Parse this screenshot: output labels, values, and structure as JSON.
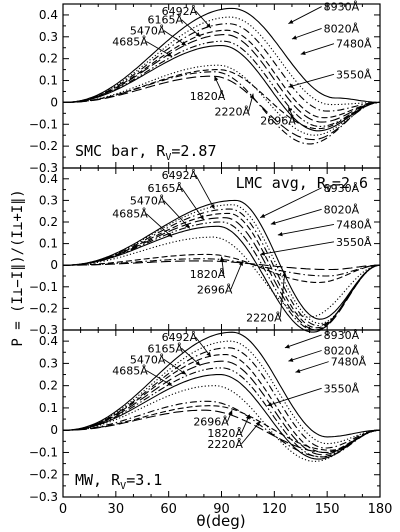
{
  "chart_data": {
    "type": "line",
    "xlabel": "θ(deg)",
    "ylabel": "P = (I⊥−I∥)/(I⊥+I∥)",
    "xlim": [
      0,
      180
    ],
    "ylim": [
      -0.3,
      0.45
    ],
    "xticks": [
      "0",
      "30",
      "60",
      "90",
      "120",
      "150",
      "180"
    ],
    "yticks": [
      "−0.3",
      "−0.2",
      "−0.1",
      "0",
      "0.1",
      "0.2",
      "0.3",
      "0.4"
    ],
    "grid": false,
    "panels": [
      {
        "title": "SMC bar, RV=2.87",
        "title_main": "SMC bar, R",
        "title_sub": "V",
        "title_tail": "=2.87",
        "series": [
          {
            "name": "8930Å",
            "style": "solid",
            "peak_x": 96,
            "peak_y": 0.43,
            "min_x": 155,
            "min_y": 0.02
          },
          {
            "name": "8020Å",
            "style": "dotted",
            "peak_x": 95,
            "peak_y": 0.39,
            "min_x": 152,
            "min_y": -0.01
          },
          {
            "name": "7480Å",
            "style": "dashdot",
            "peak_x": 94,
            "peak_y": 0.36,
            "min_x": 150,
            "min_y": -0.04
          },
          {
            "name": "6492Å",
            "style": "dashed",
            "peak_x": 93,
            "peak_y": 0.33,
            "min_x": 148,
            "min_y": -0.07
          },
          {
            "name": "6165Å",
            "style": "longdash",
            "peak_x": 92,
            "peak_y": 0.31,
            "min_x": 147,
            "min_y": -0.09
          },
          {
            "name": "5470Å",
            "style": "dashdotdot",
            "peak_x": 91,
            "peak_y": 0.28,
            "min_x": 146,
            "min_y": -0.11
          },
          {
            "name": "4685Å",
            "style": "solid",
            "peak_x": 90,
            "peak_y": 0.26,
            "min_x": 145,
            "min_y": -0.13
          },
          {
            "name": "3550Å",
            "style": "dotted",
            "peak_x": 88,
            "peak_y": 0.17,
            "min_x": 143,
            "min_y": -0.15
          },
          {
            "name": "2696Å",
            "style": "dashdot",
            "peak_x": 86,
            "peak_y": 0.14,
            "min_x": 140,
            "min_y": -0.19
          },
          {
            "name": "2220Å",
            "style": "longdash",
            "peak_x": 85,
            "peak_y": 0.12,
            "min_x": 142,
            "min_y": -0.17
          },
          {
            "name": "1820Å",
            "style": "dashed",
            "peak_x": 88,
            "peak_y": 0.15,
            "min_x": 145,
            "min_y": -0.12
          }
        ],
        "labels": [
          {
            "text": "6492Å",
            "lx": 56,
            "ly": 0.4,
            "tx": 84,
            "ty": 0.34
          },
          {
            "text": "6165Å",
            "lx": 48,
            "ly": 0.36,
            "tx": 78,
            "ty": 0.3
          },
          {
            "text": "5470Å",
            "lx": 38,
            "ly": 0.31,
            "tx": 70,
            "ty": 0.26
          },
          {
            "text": "4685Å",
            "lx": 28,
            "ly": 0.26,
            "tx": 62,
            "ty": 0.21
          },
          {
            "text": "8930Å",
            "lx": 148,
            "ly": 0.42,
            "tx": 128,
            "ty": 0.36
          },
          {
            "text": "8020Å",
            "lx": 148,
            "ly": 0.32,
            "tx": 130,
            "ty": 0.29
          },
          {
            "text": "7480Å",
            "lx": 155,
            "ly": 0.25,
            "tx": 135,
            "ty": 0.22
          },
          {
            "text": "3550Å",
            "lx": 155,
            "ly": 0.11,
            "tx": 128,
            "ty": 0.07
          },
          {
            "text": "1820Å",
            "lx": 72,
            "ly": 0.01,
            "tx": 86,
            "ty": 0.12
          },
          {
            "text": "2220Å",
            "lx": 86,
            "ly": -0.06,
            "tx": 108,
            "ty": 0.04
          },
          {
            "text": "2696Å",
            "lx": 112,
            "ly": -0.1,
            "tx": 128,
            "ty": -0.02
          }
        ],
        "title_pos": "bottom-left"
      },
      {
        "title": "LMC avg, RV=2.6",
        "title_main": "LMC avg, R",
        "title_sub": "V",
        "title_tail": "=2.6",
        "series": [
          {
            "name": "8930Å",
            "style": "solid",
            "peak_x": 98,
            "peak_y": 0.3,
            "min_x": 146,
            "min_y": -0.25
          },
          {
            "name": "8020Å",
            "style": "dotted",
            "peak_x": 96,
            "peak_y": 0.28,
            "min_x": 146,
            "min_y": -0.27
          },
          {
            "name": "7480Å",
            "style": "dashdot",
            "peak_x": 95,
            "peak_y": 0.26,
            "min_x": 145,
            "min_y": -0.28
          },
          {
            "name": "6492Å",
            "style": "dashed",
            "peak_x": 94,
            "peak_y": 0.24,
            "min_x": 144,
            "min_y": -0.29
          },
          {
            "name": "6165Å",
            "style": "longdash",
            "peak_x": 92,
            "peak_y": 0.22,
            "min_x": 144,
            "min_y": -0.3
          },
          {
            "name": "5470Å",
            "style": "dashdotdot",
            "peak_x": 90,
            "peak_y": 0.2,
            "min_x": 143,
            "min_y": -0.3
          },
          {
            "name": "4685Å",
            "style": "solid",
            "peak_x": 88,
            "peak_y": 0.18,
            "min_x": 142,
            "min_y": -0.31
          },
          {
            "name": "3550Å",
            "style": "dotted",
            "peak_x": 85,
            "peak_y": 0.13,
            "min_x": 140,
            "min_y": -0.24
          },
          {
            "name": "2696Å",
            "style": "dashdot",
            "peak_x": 80,
            "peak_y": 0.03,
            "min_x": 150,
            "min_y": -0.05
          },
          {
            "name": "2220Å",
            "style": "longdash",
            "peak_x": 78,
            "peak_y": 0.02,
            "min_x": 152,
            "min_y": -0.02
          },
          {
            "name": "1820Å",
            "style": "dashed",
            "peak_x": 82,
            "peak_y": 0.05,
            "min_x": 145,
            "min_y": -0.08
          }
        ],
        "labels": [
          {
            "text": "6492Å",
            "lx": 56,
            "ly": 0.4,
            "tx": 86,
            "ty": 0.26
          },
          {
            "text": "6165Å",
            "lx": 48,
            "ly": 0.34,
            "tx": 80,
            "ty": 0.21
          },
          {
            "text": "5470Å",
            "lx": 38,
            "ly": 0.28,
            "tx": 72,
            "ty": 0.17
          },
          {
            "text": "4685Å",
            "lx": 28,
            "ly": 0.22,
            "tx": 62,
            "ty": 0.13
          },
          {
            "text": "8930Å",
            "lx": 148,
            "ly": 0.34,
            "tx": 112,
            "ty": 0.22
          },
          {
            "text": "8020Å",
            "lx": 148,
            "ly": 0.24,
            "tx": 118,
            "ty": 0.19
          },
          {
            "text": "7480Å",
            "lx": 155,
            "ly": 0.17,
            "tx": 122,
            "ty": 0.14
          },
          {
            "text": "3550Å",
            "lx": 155,
            "ly": 0.09,
            "tx": 112,
            "ty": 0.05
          },
          {
            "text": "1820Å",
            "lx": 72,
            "ly": -0.06,
            "tx": 90,
            "ty": 0.04
          },
          {
            "text": "2696Å",
            "lx": 76,
            "ly": -0.13,
            "tx": 102,
            "ty": 0.02
          },
          {
            "text": "2220Å",
            "lx": 104,
            "ly": -0.26,
            "tx": 126,
            "ty": -0.03
          }
        ],
        "title_pos": "top-right"
      },
      {
        "title": "MW, RV=3.1",
        "title_main": "MW, R",
        "title_sub": "V",
        "title_tail": "=3.1",
        "series": [
          {
            "name": "8930Å",
            "style": "solid",
            "peak_x": 96,
            "peak_y": 0.44,
            "min_x": 150,
            "min_y": -0.03
          },
          {
            "name": "8020Å",
            "style": "dotted",
            "peak_x": 95,
            "peak_y": 0.4,
            "min_x": 150,
            "min_y": -0.06
          },
          {
            "name": "7480Å",
            "style": "dashdot",
            "peak_x": 94,
            "peak_y": 0.37,
            "min_x": 149,
            "min_y": -0.08
          },
          {
            "name": "6492Å",
            "style": "dashed",
            "peak_x": 92,
            "peak_y": 0.34,
            "min_x": 148,
            "min_y": -0.1
          },
          {
            "name": "6165Å",
            "style": "longdash",
            "peak_x": 91,
            "peak_y": 0.31,
            "min_x": 147,
            "min_y": -0.11
          },
          {
            "name": "5470Å",
            "style": "dashdotdot",
            "peak_x": 90,
            "peak_y": 0.28,
            "min_x": 146,
            "min_y": -0.12
          },
          {
            "name": "4685Å",
            "style": "solid",
            "peak_x": 89,
            "peak_y": 0.25,
            "min_x": 145,
            "min_y": -0.13
          },
          {
            "name": "3550Å",
            "style": "dotted",
            "peak_x": 86,
            "peak_y": 0.2,
            "min_x": 143,
            "min_y": -0.14
          },
          {
            "name": "2696Å",
            "style": "dashdot",
            "peak_x": 82,
            "peak_y": 0.13,
            "min_x": 148,
            "min_y": -0.12
          },
          {
            "name": "1820Å",
            "style": "dashed",
            "peak_x": 84,
            "peak_y": 0.11,
            "min_x": 152,
            "min_y": -0.09
          },
          {
            "name": "2220Å",
            "style": "longdash",
            "peak_x": 80,
            "peak_y": 0.09,
            "min_x": 150,
            "min_y": -0.1
          }
        ],
        "labels": [
          {
            "text": "6492Å",
            "lx": 56,
            "ly": 0.4,
            "tx": 84,
            "ty": 0.33
          },
          {
            "text": "6165Å",
            "lx": 48,
            "ly": 0.35,
            "tx": 78,
            "ty": 0.29
          },
          {
            "text": "5470Å",
            "lx": 38,
            "ly": 0.3,
            "tx": 70,
            "ty": 0.25
          },
          {
            "text": "4685Å",
            "lx": 28,
            "ly": 0.25,
            "tx": 62,
            "ty": 0.2
          },
          {
            "text": "8930Å",
            "lx": 148,
            "ly": 0.41,
            "tx": 126,
            "ty": 0.37
          },
          {
            "text": "8020Å",
            "lx": 148,
            "ly": 0.34,
            "tx": 128,
            "ty": 0.31
          },
          {
            "text": "7480Å",
            "lx": 152,
            "ly": 0.29,
            "tx": 132,
            "ty": 0.26
          },
          {
            "text": "3550Å",
            "lx": 148,
            "ly": 0.17,
            "tx": 116,
            "ty": 0.11
          },
          {
            "text": "2696Å",
            "lx": 74,
            "ly": 0.02,
            "tx": 96,
            "ty": 0.09
          },
          {
            "text": "1820Å",
            "lx": 82,
            "ly": -0.03,
            "tx": 106,
            "ty": 0.07
          },
          {
            "text": "2220Å",
            "lx": 82,
            "ly": -0.08,
            "tx": 112,
            "ty": 0.04
          }
        ],
        "title_pos": "bottom-left"
      }
    ]
  }
}
